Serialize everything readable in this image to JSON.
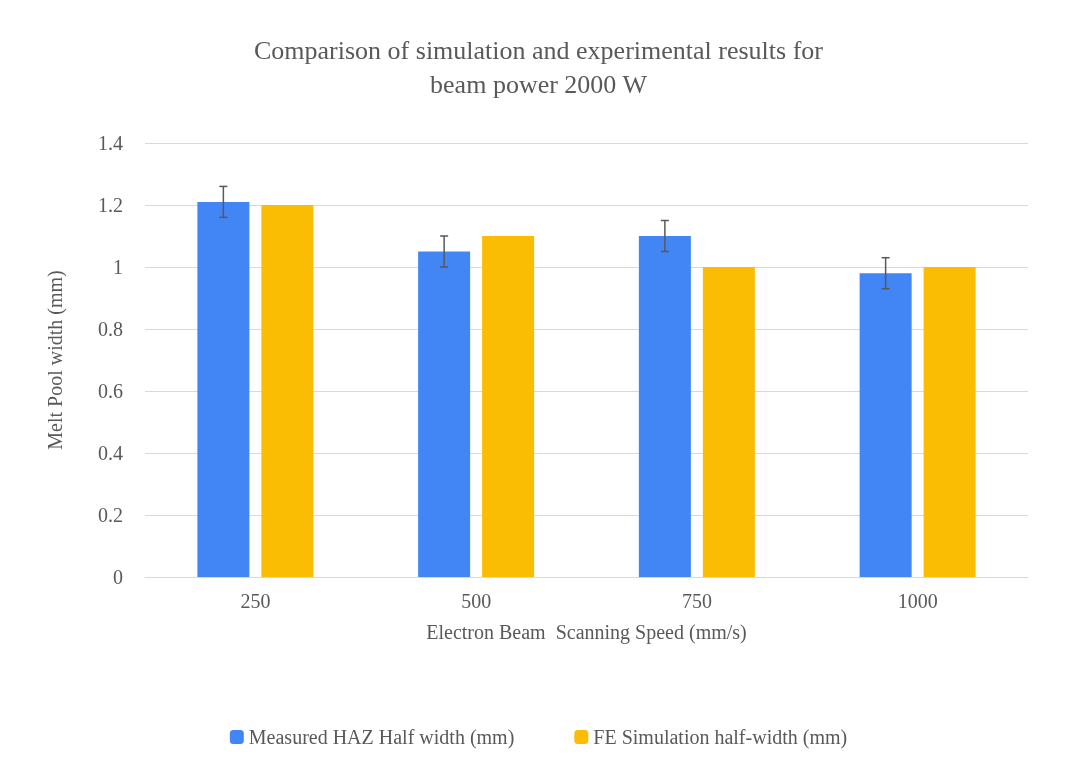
{
  "chart_data": {
    "type": "bar",
    "title": "Comparison of simulation and experimental results for\nbeam power 2000 W",
    "xlabel": "Electron Beam  Scanning Speed (mm/s)",
    "ylabel": "Melt Pool width (mm)",
    "categories": [
      "250",
      "500",
      "750",
      "1000"
    ],
    "series": [
      {
        "name": "Measured HAZ Half width (mm)",
        "color": "#4285f4",
        "values": [
          1.21,
          1.05,
          1.1,
          0.98
        ],
        "errors": [
          0.05,
          0.05,
          0.05,
          0.05
        ]
      },
      {
        "name": "FE Simulation half-width (mm)",
        "color": "#fbbc04",
        "values": [
          1.2,
          1.1,
          1.0,
          1.0
        ]
      }
    ],
    "ylim": [
      0,
      1.4
    ],
    "yticks": [
      0,
      0.2,
      0.4,
      0.6,
      0.8,
      1,
      1.2,
      1.4
    ],
    "grid": "y",
    "legend": "bottom"
  }
}
